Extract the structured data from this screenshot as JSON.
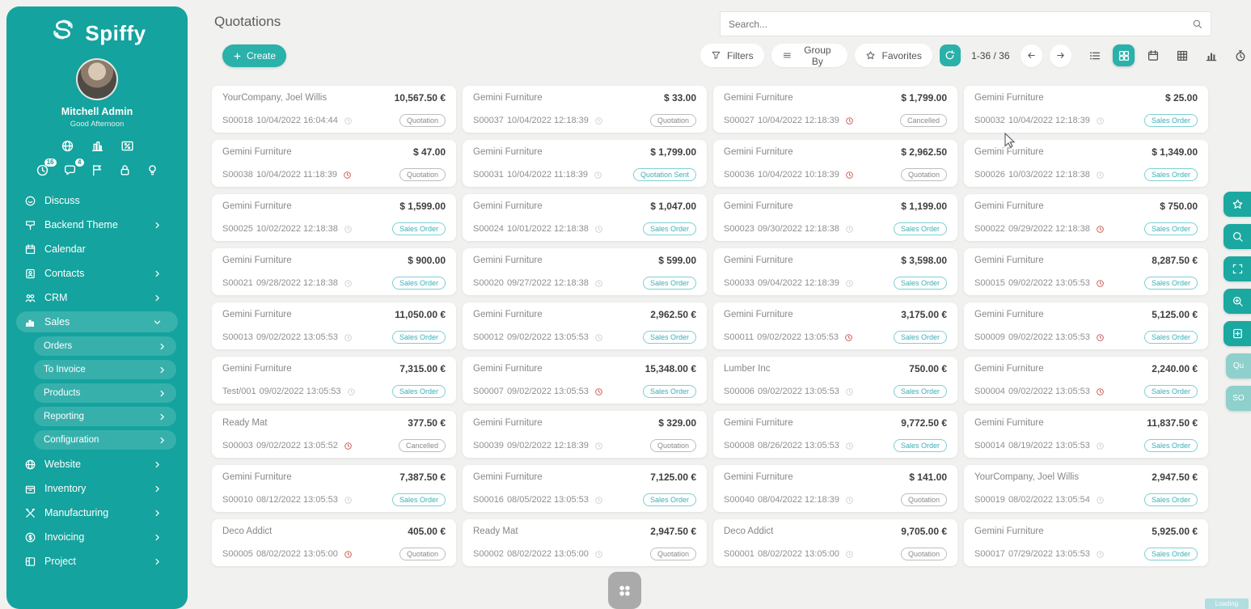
{
  "app": {
    "brand": "Spiffy"
  },
  "sidebar": {
    "user": {
      "name": "Mitchell Admin",
      "greeting": "Good Afternoon"
    },
    "quick_icons_top": [
      {
        "icon": "globe-icon"
      },
      {
        "icon": "building-icon"
      },
      {
        "icon": "percent-icon"
      }
    ],
    "quick_icons": [
      {
        "icon": "clock-icon",
        "badge": "16"
      },
      {
        "icon": "chat-icon",
        "badge": "4"
      },
      {
        "icon": "flag-icon",
        "badge": null
      },
      {
        "icon": "lock-icon",
        "badge": null
      },
      {
        "icon": "bulb-icon",
        "badge": null
      }
    ],
    "menu": [
      {
        "label": "Discuss",
        "icon": "discuss-icon",
        "chevron": null,
        "active": false
      },
      {
        "label": "Backend Theme",
        "icon": "theme-icon",
        "chevron": "right",
        "active": false
      },
      {
        "label": "Calendar",
        "icon": "calendar-icon",
        "chevron": null,
        "active": false
      },
      {
        "label": "Contacts",
        "icon": "contacts-icon",
        "chevron": "right",
        "active": false
      },
      {
        "label": "CRM",
        "icon": "crm-icon",
        "chevron": "right",
        "active": false
      },
      {
        "label": "Sales",
        "icon": "sales-icon",
        "chevron": "down",
        "active": true,
        "submenu": [
          "Orders",
          "To Invoice",
          "Products",
          "Reporting",
          "Configuration"
        ]
      },
      {
        "label": "Website",
        "icon": "website-icon",
        "chevron": "right",
        "active": false
      },
      {
        "label": "Inventory",
        "icon": "inventory-icon",
        "chevron": "right",
        "active": false
      },
      {
        "label": "Manufacturing",
        "icon": "manufacturing-icon",
        "chevron": "right",
        "active": false
      },
      {
        "label": "Invoicing",
        "icon": "invoicing-icon",
        "chevron": "right",
        "active": false
      },
      {
        "label": "Project",
        "icon": "project-icon",
        "chevron": "right",
        "active": false
      }
    ]
  },
  "header": {
    "title": "Quotations",
    "create_label": "Create",
    "search_placeholder": "Search...",
    "filters_label": "Filters",
    "group_by_label": "Group By",
    "favorites_label": "Favorites",
    "pager": "1-36 / 36",
    "filters_icon": "funnel-icon",
    "group_by_icon": "group-by-icon",
    "favorites_icon": "star-icon",
    "refresh_icon": "refresh-icon"
  },
  "view_switcher": [
    {
      "icon": "list-view-icon",
      "active": false
    },
    {
      "icon": "kanban-view-icon",
      "active": true
    },
    {
      "icon": "calendar-view-icon",
      "active": false
    },
    {
      "icon": "pivot-view-icon",
      "active": false
    },
    {
      "icon": "graph-view-icon",
      "active": false
    },
    {
      "icon": "activity-view-icon",
      "active": false
    }
  ],
  "cards": [
    {
      "customer": "YourCompany, Joel Willis",
      "amount": "10,567.50 €",
      "ref": "S00018",
      "date": "10/04/2022 16:04:44",
      "clock": "gray",
      "badge": "Quotation",
      "badge_style": "gray"
    },
    {
      "customer": "Gemini Furniture",
      "amount": "$ 33.00",
      "ref": "S00037",
      "date": "10/04/2022 12:18:39",
      "clock": "gray",
      "badge": "Quotation",
      "badge_style": "gray"
    },
    {
      "customer": "Gemini Furniture",
      "amount": "$ 1,799.00",
      "ref": "S00027",
      "date": "10/04/2022 12:18:39",
      "clock": "red",
      "badge": "Cancelled",
      "badge_style": "gray"
    },
    {
      "customer": "Gemini Furniture",
      "amount": "$ 25.00",
      "ref": "S00032",
      "date": "10/04/2022 12:18:39",
      "clock": "gray",
      "badge": "Sales Order",
      "badge_style": "teal"
    },
    {
      "customer": "Gemini Furniture",
      "amount": "$ 47.00",
      "ref": "S00038",
      "date": "10/04/2022 11:18:39",
      "clock": "red",
      "badge": "Quotation",
      "badge_style": "gray"
    },
    {
      "customer": "Gemini Furniture",
      "amount": "$ 1,799.00",
      "ref": "S00031",
      "date": "10/04/2022 11:18:39",
      "clock": "gray",
      "badge": "Quotation Sent",
      "badge_style": "teal"
    },
    {
      "customer": "Gemini Furniture",
      "amount": "$ 2,962.50",
      "ref": "S00036",
      "date": "10/04/2022 10:18:39",
      "clock": "red",
      "badge": "Quotation",
      "badge_style": "gray"
    },
    {
      "customer": "Gemini Furniture",
      "amount": "$ 1,349.00",
      "ref": "S00026",
      "date": "10/03/2022 12:18:38",
      "clock": "gray",
      "badge": "Sales Order",
      "badge_style": "teal"
    },
    {
      "customer": "Gemini Furniture",
      "amount": "$ 1,599.00",
      "ref": "S00025",
      "date": "10/02/2022 12:18:38",
      "clock": "gray",
      "badge": "Sales Order",
      "badge_style": "teal"
    },
    {
      "customer": "Gemini Furniture",
      "amount": "$ 1,047.00",
      "ref": "S00024",
      "date": "10/01/2022 12:18:38",
      "clock": "gray",
      "badge": "Sales Order",
      "badge_style": "teal"
    },
    {
      "customer": "Gemini Furniture",
      "amount": "$ 1,199.00",
      "ref": "S00023",
      "date": "09/30/2022 12:18:38",
      "clock": "gray",
      "badge": "Sales Order",
      "badge_style": "teal"
    },
    {
      "customer": "Gemini Furniture",
      "amount": "$ 750.00",
      "ref": "S00022",
      "date": "09/29/2022 12:18:38",
      "clock": "red",
      "badge": "Sales Order",
      "badge_style": "teal"
    },
    {
      "customer": "Gemini Furniture",
      "amount": "$ 900.00",
      "ref": "S00021",
      "date": "09/28/2022 12:18:38",
      "clock": "gray",
      "badge": "Sales Order",
      "badge_style": "teal"
    },
    {
      "customer": "Gemini Furniture",
      "amount": "$ 599.00",
      "ref": "S00020",
      "date": "09/27/2022 12:18:38",
      "clock": "gray",
      "badge": "Sales Order",
      "badge_style": "teal"
    },
    {
      "customer": "Gemini Furniture",
      "amount": "$ 3,598.00",
      "ref": "S00033",
      "date": "09/04/2022 12:18:39",
      "clock": "gray",
      "badge": "Sales Order",
      "badge_style": "teal"
    },
    {
      "customer": "Gemini Furniture",
      "amount": "8,287.50 €",
      "ref": "S00015",
      "date": "09/02/2022 13:05:53",
      "clock": "red",
      "badge": "Sales Order",
      "badge_style": "teal"
    },
    {
      "customer": "Gemini Furniture",
      "amount": "11,050.00 €",
      "ref": "S00013",
      "date": "09/02/2022 13:05:53",
      "clock": "gray",
      "badge": "Sales Order",
      "badge_style": "teal"
    },
    {
      "customer": "Gemini Furniture",
      "amount": "2,962.50 €",
      "ref": "S00012",
      "date": "09/02/2022 13:05:53",
      "clock": "gray",
      "badge": "Sales Order",
      "badge_style": "teal"
    },
    {
      "customer": "Gemini Furniture",
      "amount": "3,175.00 €",
      "ref": "S00011",
      "date": "09/02/2022 13:05:53",
      "clock": "red",
      "badge": "Sales Order",
      "badge_style": "teal"
    },
    {
      "customer": "Gemini Furniture",
      "amount": "5,125.00 €",
      "ref": "S00009",
      "date": "09/02/2022 13:05:53",
      "clock": "red",
      "badge": "Sales Order",
      "badge_style": "teal"
    },
    {
      "customer": "Gemini Furniture",
      "amount": "7,315.00 €",
      "ref": "Test/001",
      "date": "09/02/2022 13:05:53",
      "clock": "gray",
      "badge": "Sales Order",
      "badge_style": "teal"
    },
    {
      "customer": "Gemini Furniture",
      "amount": "15,348.00 €",
      "ref": "S00007",
      "date": "09/02/2022 13:05:53",
      "clock": "red",
      "badge": "Sales Order",
      "badge_style": "teal"
    },
    {
      "customer": "Lumber Inc",
      "amount": "750.00 €",
      "ref": "S00006",
      "date": "09/02/2022 13:05:53",
      "clock": "gray",
      "badge": "Sales Order",
      "badge_style": "teal"
    },
    {
      "customer": "Gemini Furniture",
      "amount": "2,240.00 €",
      "ref": "S00004",
      "date": "09/02/2022 13:05:53",
      "clock": "red",
      "badge": "Sales Order",
      "badge_style": "teal"
    },
    {
      "customer": "Ready Mat",
      "amount": "377.50 €",
      "ref": "S00003",
      "date": "09/02/2022 13:05:52",
      "clock": "red",
      "badge": "Cancelled",
      "badge_style": "gray"
    },
    {
      "customer": "Gemini Furniture",
      "amount": "$ 329.00",
      "ref": "S00039",
      "date": "09/02/2022 12:18:39",
      "clock": "gray",
      "badge": "Quotation",
      "badge_style": "gray"
    },
    {
      "customer": "Gemini Furniture",
      "amount": "9,772.50 €",
      "ref": "S00008",
      "date": "08/26/2022 13:05:53",
      "clock": "gray",
      "badge": "Sales Order",
      "badge_style": "teal"
    },
    {
      "customer": "Gemini Furniture",
      "amount": "11,837.50 €",
      "ref": "S00014",
      "date": "08/19/2022 13:05:53",
      "clock": "gray",
      "badge": "Sales Order",
      "badge_style": "teal"
    },
    {
      "customer": "Gemini Furniture",
      "amount": "7,387.50 €",
      "ref": "S00010",
      "date": "08/12/2022 13:05:53",
      "clock": "gray",
      "badge": "Sales Order",
      "badge_style": "teal"
    },
    {
      "customer": "Gemini Furniture",
      "amount": "7,125.00 €",
      "ref": "S00016",
      "date": "08/05/2022 13:05:53",
      "clock": "gray",
      "badge": "Sales Order",
      "badge_style": "teal"
    },
    {
      "customer": "Gemini Furniture",
      "amount": "$ 141.00",
      "ref": "S00040",
      "date": "08/04/2022 12:18:39",
      "clock": "gray",
      "badge": "Quotation",
      "badge_style": "gray"
    },
    {
      "customer": "YourCompany, Joel Willis",
      "amount": "2,947.50 €",
      "ref": "S00019",
      "date": "08/02/2022 13:05:54",
      "clock": "gray",
      "badge": "Sales Order",
      "badge_style": "teal"
    },
    {
      "customer": "Deco Addict",
      "amount": "405.00 €",
      "ref": "S00005",
      "date": "08/02/2022 13:05:00",
      "clock": "red",
      "badge": "Quotation",
      "badge_style": "gray"
    },
    {
      "customer": "Ready Mat",
      "amount": "2,947.50 €",
      "ref": "S00002",
      "date": "08/02/2022 13:05:00",
      "clock": "gray",
      "badge": "Quotation",
      "badge_style": "gray"
    },
    {
      "customer": "Deco Addict",
      "amount": "9,705.00 €",
      "ref": "S00001",
      "date": "08/02/2022 13:05:00",
      "clock": "gray",
      "badge": "Quotation",
      "badge_style": "gray"
    },
    {
      "customer": "Gemini Furniture",
      "amount": "5,925.00 €",
      "ref": "S00017",
      "date": "07/29/2022 13:05:53",
      "clock": "gray",
      "badge": "Sales Order",
      "badge_style": "teal"
    }
  ],
  "dock": [
    {
      "icon": "star-icon",
      "label": null
    },
    {
      "icon": "search-icon",
      "label": null
    },
    {
      "icon": "expand-icon",
      "label": null
    },
    {
      "icon": "zoom-in-icon",
      "label": null
    },
    {
      "icon": "bookmark-add-icon",
      "label": null
    },
    {
      "icon": null,
      "label": "Qu"
    },
    {
      "icon": null,
      "label": "SO"
    }
  ],
  "misc": {
    "apps_button_icon": "apps-grid-icon",
    "loading_label": "Loading"
  },
  "colors": {
    "sidebar_teal": "#14a39e",
    "accent": "#29b1aa",
    "badge_teal": "#3ab0ba",
    "danger_red": "#c9524c"
  }
}
